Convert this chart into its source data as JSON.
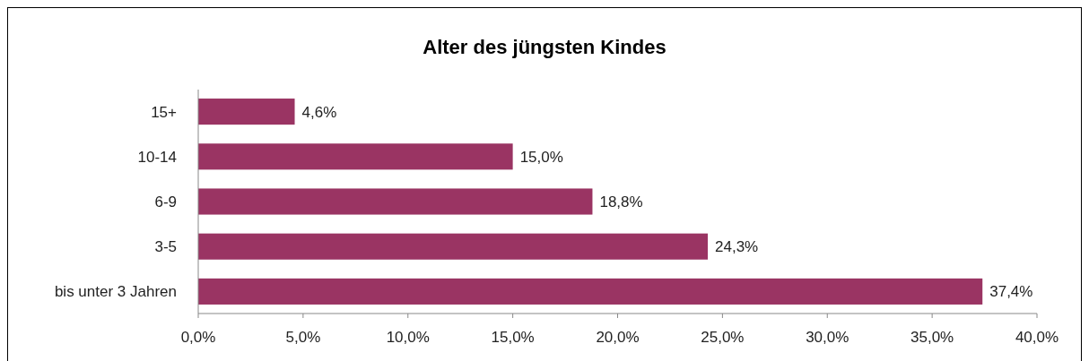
{
  "chart_data": {
    "type": "bar",
    "orientation": "horizontal",
    "title": "Alter des jüngsten Kindes",
    "categories": [
      "15+",
      "10-14",
      "6-9",
      "3-5",
      "bis unter 3 Jahren"
    ],
    "values": [
      4.6,
      15.0,
      18.8,
      24.3,
      37.4
    ],
    "value_labels": [
      "4,6%",
      "15,0%",
      "18,8%",
      "24,3%",
      "37,4%"
    ],
    "color": "#9a3463",
    "xlim": [
      0,
      40
    ],
    "xticks": [
      {
        "value": 0,
        "label": "0,0%"
      },
      {
        "value": 5,
        "label": "5,0%"
      },
      {
        "value": 10,
        "label": "10,0%"
      },
      {
        "value": 15,
        "label": "15,0%"
      },
      {
        "value": 20,
        "label": "20,0%"
      },
      {
        "value": 25,
        "label": "25,0%"
      },
      {
        "value": 30,
        "label": "30,0%"
      },
      {
        "value": 35,
        "label": "35,0%"
      },
      {
        "value": 40,
        "label": "40,0%"
      }
    ],
    "grid": false
  }
}
